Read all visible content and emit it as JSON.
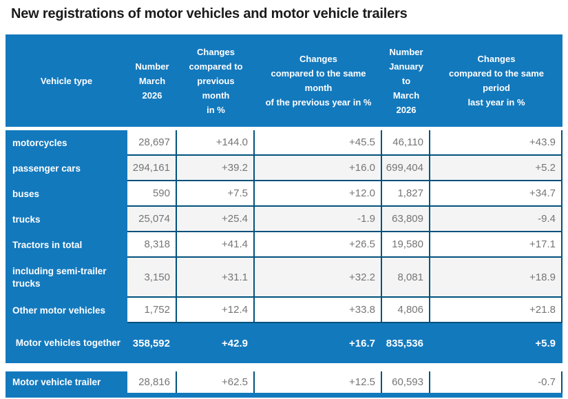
{
  "title": "New registrations of motor vehicles and motor vehicle trailers",
  "colors": {
    "header_blue": "#1379bd",
    "border_navy": "#00517c",
    "zebra_gray": "#f4f4f4",
    "value_text": "#757575",
    "title_text": "#1b1b1b"
  },
  "chart_data": {
    "type": "table",
    "title": "New registrations of motor vehicles and motor vehicle trailers",
    "columns": [
      "Vehicle type",
      "Number\nMarch\n2026",
      "Changes\ncompared to\nprevious\nmonth\nin %",
      "Changes\ncompared to the same\nmonth\nof the previous year in %",
      "Number\nJanuary\nto\nMarch\n2026",
      "Changes\ncompared to the same\nperiod\nlast year in %"
    ],
    "rows": [
      {
        "label": "motorcycles",
        "values": [
          "28,697",
          "+144.0",
          "+45.5",
          "46,110",
          "+43.9"
        ]
      },
      {
        "label": "passenger cars",
        "values": [
          "294,161",
          "+39.2",
          "+16.0",
          "699,404",
          "+5.2"
        ]
      },
      {
        "label": "buses",
        "values": [
          "590",
          "+7.5",
          "+12.0",
          "1,827",
          "+34.7"
        ]
      },
      {
        "label": "trucks",
        "values": [
          "25,074",
          "+25.4",
          "-1.9",
          "63,809",
          "-9.4"
        ]
      },
      {
        "label": "Tractors in total",
        "values": [
          "8,318",
          "+41.4",
          "+26.5",
          "19,580",
          "+17.1"
        ]
      },
      {
        "label": "including semi-trailer trucks",
        "values": [
          "3,150",
          "+31.1",
          "+32.2",
          "8,081",
          "+18.9"
        ]
      },
      {
        "label": "Other motor vehicles",
        "values": [
          "1,752",
          "+12.4",
          "+33.8",
          "4,806",
          "+21.8"
        ]
      },
      {
        "label": "Motor vehicles together",
        "values": [
          "358,592",
          "+42.9",
          "+16.7",
          "835,536",
          "+5.9"
        ],
        "variant": "total"
      },
      {
        "label": "Motor vehicle trailer",
        "values": [
          "28,816",
          "+62.5",
          "+12.5",
          "60,593",
          "-0.7"
        ],
        "variant": "trailer"
      }
    ]
  }
}
